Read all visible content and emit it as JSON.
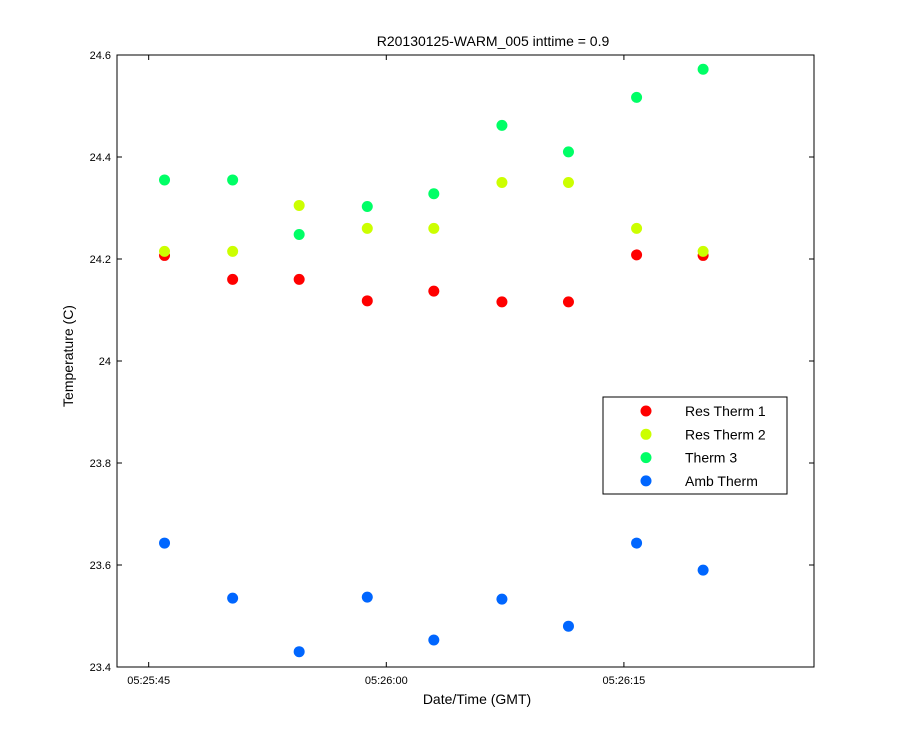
{
  "chart_data": {
    "type": "scatter",
    "title": "R20130125-WARM_005 inttime = 0.9",
    "xlabel": "Date/Time (GMT)",
    "ylabel": "Temperature (C)",
    "x_unit": "time (HH:MM:SS GMT)",
    "xlim": [
      "05:25:43",
      "05:26:27"
    ],
    "ylim": [
      23.4,
      24.6
    ],
    "x_ticks": [
      "05:25:45",
      "05:26:00",
      "05:26:15"
    ],
    "y_ticks": [
      "23.4",
      "23.6",
      "23.8",
      "24",
      "24.2",
      "24.4",
      "24.6"
    ],
    "grid": false,
    "legend_position": "right-middle",
    "x": [
      "05:25:46.0",
      "05:25:50.3",
      "05:25:54.5",
      "05:25:58.8",
      "05:26:03.0",
      "05:26:07.3",
      "05:26:11.5",
      "05:26:15.8",
      "05:26:20.0"
    ],
    "series": [
      {
        "name": "Res Therm 1",
        "color": "#ff0000",
        "values": [
          24.207,
          24.16,
          24.16,
          24.118,
          24.137,
          24.116,
          24.116,
          24.208,
          24.207
        ]
      },
      {
        "name": "Res Therm 2",
        "color": "#ccff00",
        "values": [
          24.215,
          24.215,
          24.305,
          24.26,
          24.26,
          24.35,
          24.35,
          24.26,
          24.215
        ]
      },
      {
        "name": "Therm 3",
        "color": "#00ff66",
        "values": [
          24.355,
          24.355,
          24.248,
          24.303,
          24.328,
          24.462,
          24.41,
          24.517,
          24.572
        ]
      },
      {
        "name": "Amb Therm",
        "color": "#0066ff",
        "values": [
          23.643,
          23.535,
          23.43,
          23.537,
          23.453,
          23.533,
          23.48,
          23.643,
          23.59
        ]
      }
    ]
  }
}
